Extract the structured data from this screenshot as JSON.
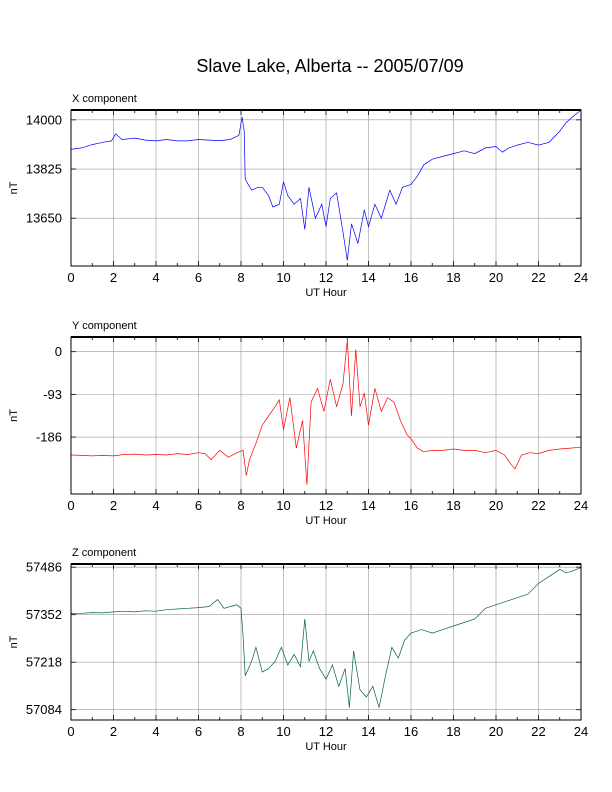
{
  "title": "Slave Lake, Alberta -- 2005/07/09",
  "chart_data": [
    {
      "type": "line",
      "title": "X component",
      "xlabel": "UT Hour",
      "ylabel": "nT",
      "xlim": [
        0,
        24
      ],
      "ylim": [
        13480,
        14035
      ],
      "xticks": [
        0,
        2,
        4,
        6,
        8,
        10,
        12,
        14,
        16,
        18,
        20,
        22,
        24
      ],
      "yticks": [
        13650,
        13825,
        14000
      ],
      "grid": true,
      "color": "#0000ff",
      "series": [
        {
          "x": [
            0,
            0.5,
            1,
            1.5,
            1.9,
            2.1,
            2.4,
            3,
            3.5,
            4,
            4.5,
            5,
            5.5,
            6,
            6.5,
            7,
            7.5,
            7.9,
            8.05,
            8.15,
            8.2,
            8.3,
            8.5,
            8.8,
            9,
            9.3,
            9.5,
            9.8,
            10,
            10.2,
            10.5,
            10.8,
            11,
            11.2,
            11.5,
            11.8,
            12,
            12.2,
            12.5,
            12.8,
            13,
            13.2,
            13.5,
            13.8,
            14,
            14.3,
            14.6,
            15,
            15.3,
            15.6,
            16,
            16.3,
            16.6,
            17,
            17.5,
            18,
            18.5,
            19,
            19.5,
            20,
            20.3,
            20.6,
            21,
            21.5,
            22,
            22.5,
            23,
            23.3,
            23.6,
            24
          ],
          "y": [
            13895,
            13900,
            13912,
            13920,
            13925,
            13950,
            13930,
            13935,
            13928,
            13925,
            13930,
            13925,
            13925,
            13930,
            13928,
            13926,
            13930,
            13945,
            14010,
            13960,
            13790,
            13775,
            13750,
            13760,
            13760,
            13730,
            13690,
            13700,
            13780,
            13730,
            13700,
            13720,
            13610,
            13760,
            13650,
            13700,
            13620,
            13720,
            13740,
            13600,
            13500,
            13630,
            13560,
            13680,
            13620,
            13700,
            13650,
            13750,
            13700,
            13760,
            13770,
            13800,
            13840,
            13860,
            13870,
            13880,
            13890,
            13880,
            13900,
            13905,
            13885,
            13900,
            13910,
            13920,
            13910,
            13920,
            13960,
            13990,
            14010,
            14035
          ]
        }
      ]
    },
    {
      "type": "line",
      "title": "Y component",
      "xlabel": "UT Hour",
      "ylabel": "nT",
      "xlim": [
        0,
        24
      ],
      "ylim": [
        -310,
        32
      ],
      "xticks": [
        0,
        2,
        4,
        6,
        8,
        10,
        12,
        14,
        16,
        18,
        20,
        22,
        24
      ],
      "yticks": [
        -186,
        -93,
        0
      ],
      "grid": true,
      "color": "#ff0000",
      "series": [
        {
          "x": [
            0,
            0.5,
            1,
            1.5,
            2,
            2.5,
            3,
            3.5,
            4,
            4.5,
            5,
            5.5,
            6,
            6.3,
            6.6,
            7,
            7.4,
            7.8,
            8.1,
            8.25,
            8.4,
            8.7,
            9,
            9.3,
            9.6,
            9.8,
            10,
            10.3,
            10.6,
            10.9,
            11.1,
            11.3,
            11.6,
            11.9,
            12.2,
            12.5,
            12.8,
            13,
            13.2,
            13.4,
            13.6,
            13.8,
            14,
            14.3,
            14.6,
            14.9,
            15.2,
            15.5,
            15.8,
            16,
            16.3,
            16.6,
            17,
            17.5,
            18,
            18.5,
            19,
            19.5,
            20,
            20.4,
            20.7,
            20.9,
            21.2,
            21.6,
            22,
            22.5,
            23,
            23.5,
            24
          ],
          "y": [
            -225,
            -226,
            -227,
            -226,
            -227,
            -224,
            -223,
            -225,
            -224,
            -225,
            -222,
            -224,
            -220,
            -222,
            -235,
            -215,
            -230,
            -220,
            -215,
            -270,
            -235,
            -200,
            -160,
            -140,
            -120,
            -105,
            -170,
            -100,
            -210,
            -150,
            -290,
            -110,
            -80,
            -130,
            -60,
            -120,
            -70,
            25,
            -140,
            5,
            -120,
            -90,
            -160,
            -80,
            -130,
            -100,
            -110,
            -150,
            -180,
            -190,
            -210,
            -218,
            -215,
            -215,
            -212,
            -215,
            -215,
            -220,
            -215,
            -225,
            -245,
            -255,
            -225,
            -220,
            -222,
            -215,
            -212,
            -210,
            -208
          ]
        }
      ]
    },
    {
      "type": "line",
      "title": "Z component",
      "xlabel": "UT Hour",
      "ylabel": "nT",
      "xlim": [
        0,
        24
      ],
      "ylim": [
        57055,
        57495
      ],
      "xticks": [
        0,
        2,
        4,
        6,
        8,
        10,
        12,
        14,
        16,
        18,
        20,
        22,
        24
      ],
      "yticks": [
        57084,
        57218,
        57352,
        57486
      ],
      "grid": true,
      "color": "#006633",
      "series": [
        {
          "x": [
            0,
            0.5,
            1,
            1.5,
            2,
            2.5,
            3,
            3.5,
            4,
            4.5,
            5,
            5.5,
            6,
            6.5,
            6.9,
            7.2,
            7.5,
            7.8,
            8,
            8.1,
            8.2,
            8.35,
            8.5,
            8.7,
            9,
            9.3,
            9.6,
            9.9,
            10.2,
            10.5,
            10.8,
            11,
            11.2,
            11.4,
            11.7,
            12,
            12.3,
            12.6,
            12.9,
            13.1,
            13.3,
            13.6,
            13.9,
            14.2,
            14.5,
            14.8,
            15.1,
            15.4,
            15.7,
            16,
            16.5,
            17,
            17.5,
            18,
            18.5,
            19,
            19.5,
            20,
            20.5,
            21,
            21.5,
            22,
            22.5,
            23,
            23.3,
            23.6,
            24
          ],
          "y": [
            57355,
            57356,
            57358,
            57357,
            57360,
            57362,
            57360,
            57363,
            57362,
            57366,
            57368,
            57370,
            57372,
            57375,
            57395,
            57370,
            57375,
            57380,
            57370,
            57290,
            57180,
            57200,
            57220,
            57260,
            57190,
            57200,
            57220,
            57260,
            57210,
            57240,
            57205,
            57340,
            57220,
            57250,
            57200,
            57170,
            57210,
            57150,
            57200,
            57090,
            57250,
            57140,
            57120,
            57150,
            57090,
            57180,
            57260,
            57230,
            57280,
            57300,
            57310,
            57300,
            57310,
            57320,
            57330,
            57340,
            57370,
            57380,
            57390,
            57400,
            57410,
            57440,
            57460,
            57480,
            57470,
            57475,
            57485
          ]
        }
      ]
    }
  ]
}
